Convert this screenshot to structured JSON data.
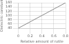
{
  "chart_data": {
    "type": "line",
    "xlabel": "Relative amount of rutile",
    "ylabel": "Dielectric constant",
    "x": [
      0.0,
      0.8
    ],
    "values": [
      40,
      160
    ],
    "color": "#888888",
    "xlim": [
      0.0,
      0.8
    ],
    "ylim": [
      40,
      160
    ],
    "xticks": [
      0,
      0.2,
      0.4,
      0.6,
      0.8
    ],
    "yticks": [
      40,
      60,
      80,
      100,
      120,
      140,
      160
    ],
    "grid": true
  }
}
